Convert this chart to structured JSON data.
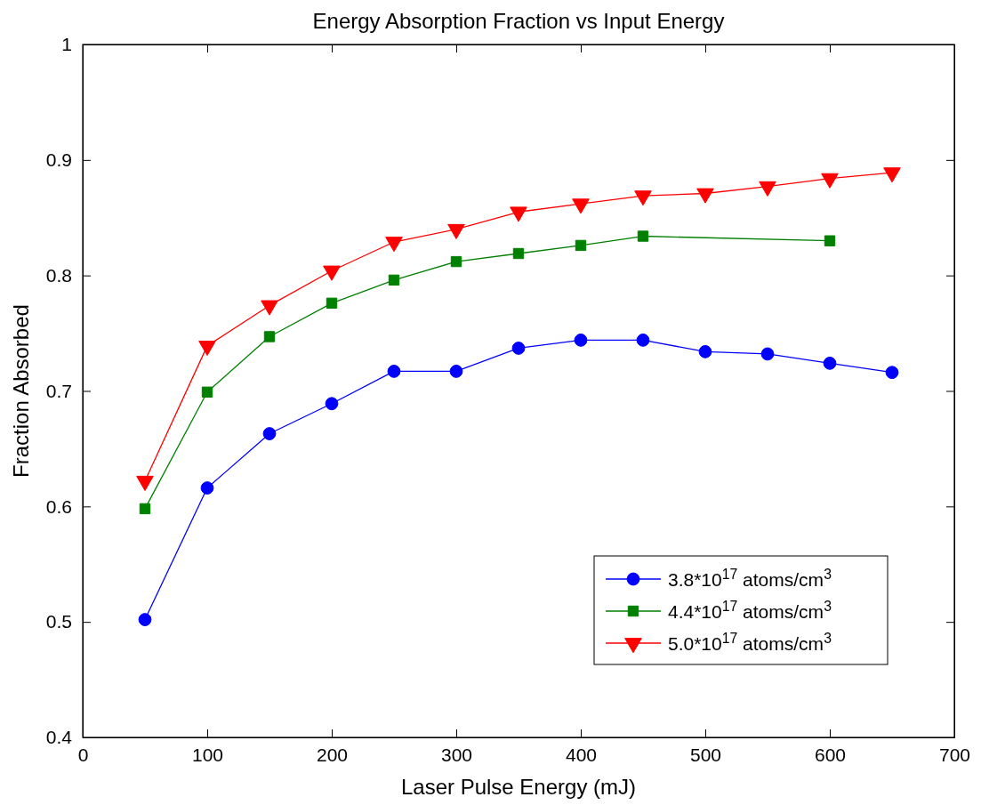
{
  "chart_data": {
    "type": "line",
    "title": "Energy Absorption Fraction vs Input Energy",
    "xlabel": "Laser Pulse Energy (mJ)",
    "ylabel": "Fraction Absorbed",
    "x": [
      50,
      100,
      150,
      200,
      250,
      300,
      350,
      400,
      450,
      500,
      550,
      600,
      650
    ],
    "xlim": [
      0,
      700
    ],
    "xticks": [
      0,
      100,
      200,
      300,
      400,
      500,
      600,
      700
    ],
    "ylim": [
      0.4,
      1
    ],
    "yticks": [
      0.4,
      0.5,
      0.6,
      0.7,
      0.8,
      0.9,
      1
    ],
    "grid": false,
    "legend": "bottom right",
    "line_style": "solid",
    "series": [
      {
        "name": "3.8*10$^{17}$ atoms/cm$^{3}$",
        "color": "#0000ff",
        "marker": "circle",
        "values": [
          0.502,
          0.616,
          0.663,
          0.689,
          0.717,
          0.717,
          0.737,
          0.744,
          0.744,
          0.734,
          0.732,
          0.724,
          0.716
        ]
      },
      {
        "name": "4.4*10$^{17}$ atoms/cm$^{3}$",
        "color": "#008000",
        "marker": "square",
        "x": [
          50,
          100,
          150,
          200,
          250,
          300,
          350,
          400,
          450,
          600
        ],
        "values": [
          0.598,
          0.699,
          0.747,
          0.776,
          0.796,
          0.812,
          0.819,
          0.826,
          0.834,
          0.83
        ]
      },
      {
        "name": "5.0*10$^{17}$ atoms/cm$^{3}$",
        "color": "#ff0000",
        "marker": "triangle",
        "values": [
          0.622,
          0.739,
          0.774,
          0.804,
          0.829,
          0.84,
          0.855,
          0.862,
          0.869,
          0.871,
          0.877,
          0.884,
          0.889
        ]
      }
    ]
  }
}
